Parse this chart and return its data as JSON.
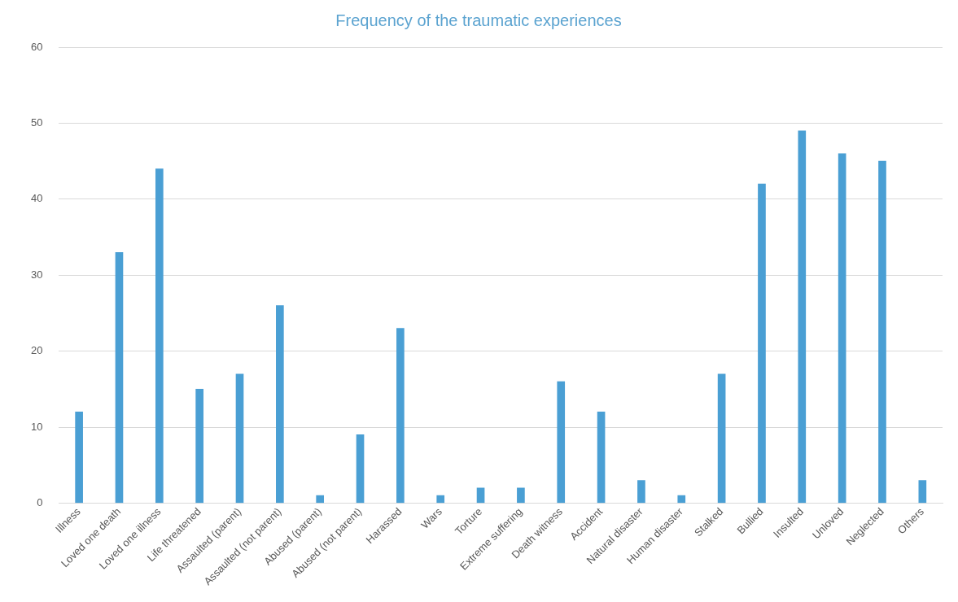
{
  "chart_data": {
    "type": "bar",
    "title": "Frequency of the traumatic experiences",
    "categories": [
      "Illness",
      "Loved one death",
      "Loved one illness",
      "Life threatened",
      "Assaulted (parent)",
      "Assaulted (not parent)",
      "Abused (parent)",
      "Abused (not parent)",
      "Harassed",
      "Wars",
      "Torture",
      "Extreme suffering",
      "Death witness",
      "Accident",
      "Natural disaster",
      "Human disaster",
      "Stalked",
      "Bullied",
      "Insulted",
      "Unloved",
      "Neglected",
      "Others"
    ],
    "values": [
      12,
      33,
      44,
      15,
      17,
      26,
      1,
      9,
      23,
      1,
      2,
      2,
      16,
      12,
      3,
      1,
      17,
      42,
      49,
      46,
      45,
      3
    ],
    "color": "#4a9fd4",
    "ylim": [
      0,
      60
    ],
    "yticks": [
      0,
      10,
      20,
      30,
      40,
      50,
      60
    ],
    "grid": "y"
  }
}
